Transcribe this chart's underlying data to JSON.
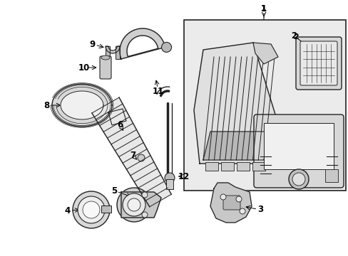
{
  "bg_color": "#ffffff",
  "line_color": "#222222",
  "box_bg": "#ebebeb",
  "fig_w": 4.89,
  "fig_h": 3.6,
  "dpi": 100
}
